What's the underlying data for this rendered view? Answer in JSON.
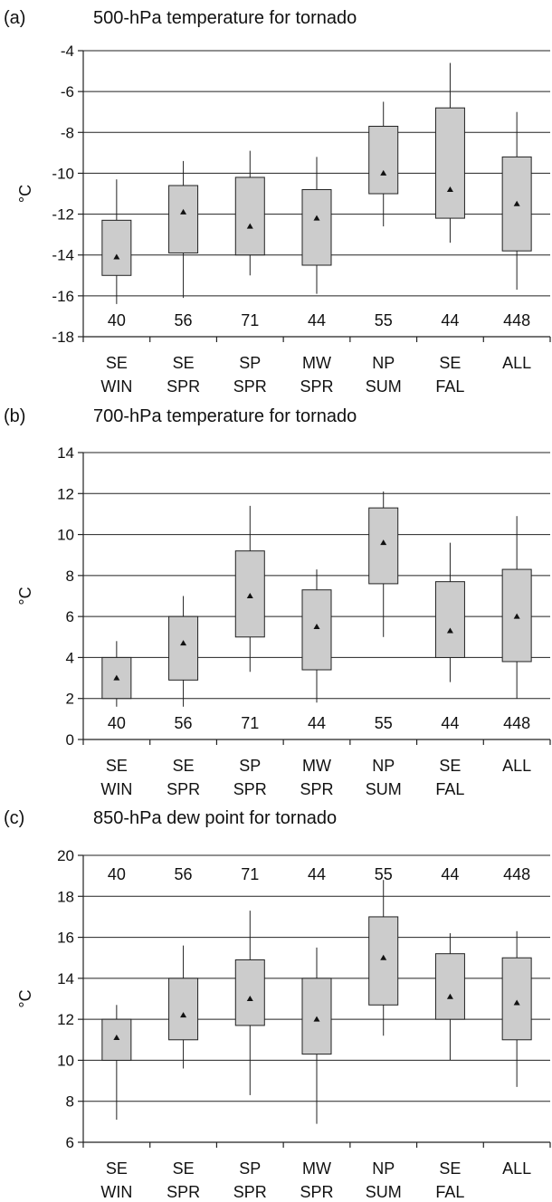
{
  "chart_data": [
    {
      "type": "box",
      "panel_label": "(a)",
      "title": "500-hPa temperature for tornado",
      "ylabel": "°C",
      "ylim": [
        -18,
        -4
      ],
      "yticks": [
        -4,
        -6,
        -8,
        -10,
        -12,
        -14,
        -16,
        -18
      ],
      "grid": true,
      "counts_position": "bottom",
      "categories": [
        {
          "line1": "SE",
          "line2": "WIN"
        },
        {
          "line1": "SE",
          "line2": "SPR"
        },
        {
          "line1": "SP",
          "line2": "SPR"
        },
        {
          "line1": "MW",
          "line2": "SPR"
        },
        {
          "line1": "NP",
          "line2": "SUM"
        },
        {
          "line1": "SE",
          "line2": "FAL"
        },
        {
          "line1": "ALL",
          "line2": ""
        }
      ],
      "counts": [
        "40",
        "56",
        "71",
        "44",
        "55",
        "44",
        "448"
      ],
      "boxes": [
        {
          "whisker_low": -16.4,
          "q1": -15.0,
          "q3": -12.3,
          "whisker_high": -10.3,
          "mean": -14.1
        },
        {
          "whisker_low": -16.1,
          "q1": -13.9,
          "q3": -10.6,
          "whisker_high": -9.4,
          "mean": -11.9
        },
        {
          "whisker_low": -15.0,
          "q1": -14.0,
          "q3": -10.2,
          "whisker_high": -8.9,
          "mean": -12.6
        },
        {
          "whisker_low": -15.9,
          "q1": -14.5,
          "q3": -10.8,
          "whisker_high": -9.2,
          "mean": -12.2
        },
        {
          "whisker_low": -12.6,
          "q1": -11.0,
          "q3": -7.7,
          "whisker_high": -6.5,
          "mean": -10.0
        },
        {
          "whisker_low": -13.4,
          "q1": -12.2,
          "q3": -6.8,
          "whisker_high": -4.6,
          "mean": -10.8
        },
        {
          "whisker_low": -15.7,
          "q1": -13.8,
          "q3": -9.2,
          "whisker_high": -7.0,
          "mean": -11.5
        }
      ]
    },
    {
      "type": "box",
      "panel_label": "(b)",
      "title": "700-hPa temperature for tornado",
      "ylabel": "°C",
      "ylim": [
        0,
        14
      ],
      "yticks": [
        14,
        12,
        10,
        8,
        6,
        4,
        2,
        0
      ],
      "grid": true,
      "counts_position": "bottom",
      "categories": [
        {
          "line1": "SE",
          "line2": "WIN"
        },
        {
          "line1": "SE",
          "line2": "SPR"
        },
        {
          "line1": "SP",
          "line2": "SPR"
        },
        {
          "line1": "MW",
          "line2": "SPR"
        },
        {
          "line1": "NP",
          "line2": "SUM"
        },
        {
          "line1": "SE",
          "line2": "FAL"
        },
        {
          "line1": "ALL",
          "line2": ""
        }
      ],
      "counts": [
        "40",
        "56",
        "71",
        "44",
        "55",
        "44",
        "448"
      ],
      "boxes": [
        {
          "whisker_low": 1.6,
          "q1": 2.0,
          "q3": 4.0,
          "whisker_high": 4.8,
          "mean": 3.0
        },
        {
          "whisker_low": 1.6,
          "q1": 2.9,
          "q3": 6.0,
          "whisker_high": 7.0,
          "mean": 4.7
        },
        {
          "whisker_low": 3.3,
          "q1": 5.0,
          "q3": 9.2,
          "whisker_high": 11.4,
          "mean": 7.0
        },
        {
          "whisker_low": 1.8,
          "q1": 3.4,
          "q3": 7.3,
          "whisker_high": 8.3,
          "mean": 5.5
        },
        {
          "whisker_low": 5.0,
          "q1": 7.6,
          "q3": 11.3,
          "whisker_high": 12.1,
          "mean": 9.6
        },
        {
          "whisker_low": 2.8,
          "q1": 4.0,
          "q3": 7.7,
          "whisker_high": 9.6,
          "mean": 5.3
        },
        {
          "whisker_low": 2.0,
          "q1": 3.8,
          "q3": 8.3,
          "whisker_high": 10.9,
          "mean": 6.0
        }
      ]
    },
    {
      "type": "box",
      "panel_label": "(c)",
      "title": "850-hPa dew point for tornado",
      "ylabel": "°C",
      "ylim": [
        6,
        20
      ],
      "yticks": [
        20,
        18,
        16,
        14,
        12,
        10,
        8,
        6
      ],
      "grid": true,
      "counts_position": "top",
      "categories": [
        {
          "line1": "SE",
          "line2": "WIN"
        },
        {
          "line1": "SE",
          "line2": "SPR"
        },
        {
          "line1": "SP",
          "line2": "SPR"
        },
        {
          "line1": "MW",
          "line2": "SPR"
        },
        {
          "line1": "NP",
          "line2": "SUM"
        },
        {
          "line1": "SE",
          "line2": "FAL"
        },
        {
          "line1": "ALL",
          "line2": ""
        }
      ],
      "counts": [
        "40",
        "56",
        "71",
        "44",
        "55",
        "44",
        "448"
      ],
      "boxes": [
        {
          "whisker_low": 7.1,
          "q1": 10.0,
          "q3": 12.0,
          "whisker_high": 12.7,
          "mean": 11.1
        },
        {
          "whisker_low": 9.6,
          "q1": 11.0,
          "q3": 14.0,
          "whisker_high": 15.6,
          "mean": 12.2
        },
        {
          "whisker_low": 8.3,
          "q1": 11.7,
          "q3": 14.9,
          "whisker_high": 17.3,
          "mean": 13.0
        },
        {
          "whisker_low": 6.9,
          "q1": 10.3,
          "q3": 14.0,
          "whisker_high": 15.5,
          "mean": 12.0
        },
        {
          "whisker_low": 11.2,
          "q1": 12.7,
          "q3": 17.0,
          "whisker_high": 18.8,
          "mean": 15.0
        },
        {
          "whisker_low": 10.0,
          "q1": 12.0,
          "q3": 15.2,
          "whisker_high": 16.2,
          "mean": 13.1
        },
        {
          "whisker_low": 8.7,
          "q1": 11.0,
          "q3": 15.0,
          "whisker_high": 16.3,
          "mean": 12.8
        }
      ]
    }
  ]
}
